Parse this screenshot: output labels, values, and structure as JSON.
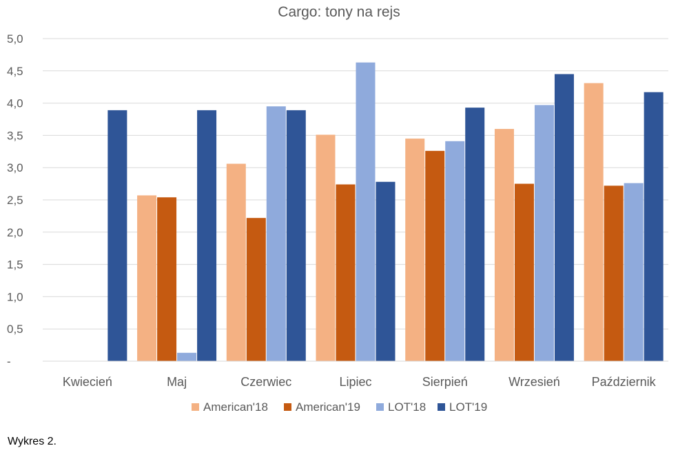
{
  "chart_data": {
    "type": "bar",
    "title": "Cargo: tony na rejs",
    "categories": [
      "Kwiecień",
      "Maj",
      "Czerwiec",
      "Lipiec",
      "Sierpień",
      "Wrzesień",
      "Październik"
    ],
    "series": [
      {
        "name": "American'18",
        "color": "#F4B183",
        "values": [
          0,
          2.57,
          3.06,
          3.51,
          3.45,
          3.6,
          4.31
        ]
      },
      {
        "name": "American'19",
        "color": "#C55A11",
        "values": [
          0,
          2.54,
          2.22,
          2.74,
          3.26,
          2.75,
          2.72
        ]
      },
      {
        "name": "LOT'18",
        "color": "#8FAADC",
        "values": [
          0,
          0.13,
          3.95,
          4.63,
          3.41,
          3.97,
          2.76
        ]
      },
      {
        "name": "LOT'19",
        "color": "#2F5597",
        "values": [
          3.89,
          3.89,
          3.89,
          2.78,
          3.93,
          4.45,
          4.17
        ]
      }
    ],
    "ylim": [
      0,
      5
    ],
    "yticks": [
      {
        "value": 0,
        "label": "-"
      },
      {
        "value": 0.5,
        "label": "0,5"
      },
      {
        "value": 1,
        "label": "1,0"
      },
      {
        "value": 1.5,
        "label": "1,5"
      },
      {
        "value": 2,
        "label": "2,0"
      },
      {
        "value": 2.5,
        "label": "2,5"
      },
      {
        "value": 3,
        "label": "3,0"
      },
      {
        "value": 3.5,
        "label": "3,5"
      },
      {
        "value": 4,
        "label": "4,0"
      },
      {
        "value": 4.5,
        "label": "4,5"
      },
      {
        "value": 5,
        "label": "5,0"
      }
    ],
    "grid": true,
    "legend_position": "bottom"
  },
  "caption": "Wykres 2."
}
